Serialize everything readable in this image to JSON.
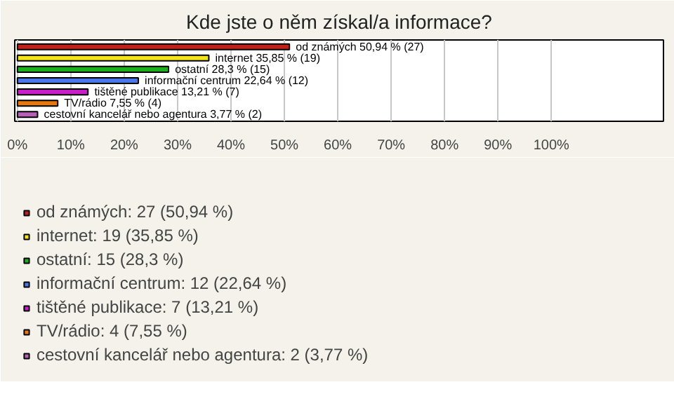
{
  "chart_data": {
    "type": "bar",
    "orientation": "horizontal",
    "title": "Kde jste o něm získal/a informace?",
    "categories": [
      null,
      null,
      null,
      null,
      null,
      null,
      null
    ],
    "series": [
      {
        "name": "od známých: 27 (50,94 %)",
        "color": "#c0201a",
        "values": [
          50.94,
          null,
          null,
          null,
          null,
          null,
          null
        ],
        "value_labels": [
          "od známých 50,94 % (27)",
          null,
          null,
          null,
          null,
          null,
          null
        ]
      },
      {
        "name": "internet: 19 (35,85 %)",
        "color": "#f2e31a",
        "values": [
          null,
          35.85,
          null,
          null,
          null,
          null,
          null
        ],
        "value_labels": [
          null,
          "internet 35,85 % (19)",
          null,
          null,
          null,
          null,
          null
        ]
      },
      {
        "name": "ostatní: 15 (28,3 %)",
        "color": "#1cae1c",
        "values": [
          null,
          null,
          28.3,
          null,
          null,
          null,
          null
        ],
        "value_labels": [
          null,
          null,
          "ostatní 28,3 % (15)",
          null,
          null,
          null,
          null
        ]
      },
      {
        "name": "informační centrum: 12 (22,64 %)",
        "color": "#4a78e8",
        "values": [
          null,
          null,
          null,
          22.64,
          null,
          null,
          null
        ],
        "value_labels": [
          null,
          null,
          null,
          "informační centrum 22,64 % (12)",
          null,
          null,
          null
        ]
      },
      {
        "name": "tištěné publikace: 7 (13,21 %)",
        "color": "#c81ec8",
        "values": [
          null,
          null,
          null,
          null,
          13.21,
          null,
          null
        ],
        "value_labels": [
          null,
          null,
          null,
          null,
          "tištěné publikace 13,21 % (7)",
          null,
          null
        ]
      },
      {
        "name": "TV/rádio: 4 (7,55 %)",
        "color": "#e87810",
        "values": [
          null,
          null,
          null,
          null,
          null,
          7.55,
          null
        ],
        "value_labels": [
          null,
          null,
          null,
          null,
          null,
          "TV/rádio 7,55 % (4)",
          null
        ]
      },
      {
        "name": "cestovní kancelář nebo agentura: 2 (3,77 %)",
        "color": "#b860b8",
        "values": [
          null,
          null,
          null,
          null,
          null,
          null,
          3.77
        ],
        "value_labels": [
          null,
          null,
          null,
          null,
          null,
          null,
          "cestovní kancelář nebo agentura 3,77 % (2)"
        ]
      }
    ],
    "xlim": [
      -0.5,
      121
    ],
    "xticks": [
      {
        "value": 0,
        "label": "0%"
      },
      {
        "value": 10,
        "label": "10%"
      },
      {
        "value": 20,
        "label": "20%"
      },
      {
        "value": 30,
        "label": "30%"
      },
      {
        "value": 40,
        "label": "40%"
      },
      {
        "value": 50,
        "label": "50%"
      },
      {
        "value": 60,
        "label": "60%"
      },
      {
        "value": 70,
        "label": "70%"
      },
      {
        "value": 80,
        "label": "80%"
      },
      {
        "value": 90,
        "label": "90%"
      },
      {
        "value": 100,
        "label": "100%"
      }
    ],
    "grid": "x",
    "legend": "bottom"
  }
}
